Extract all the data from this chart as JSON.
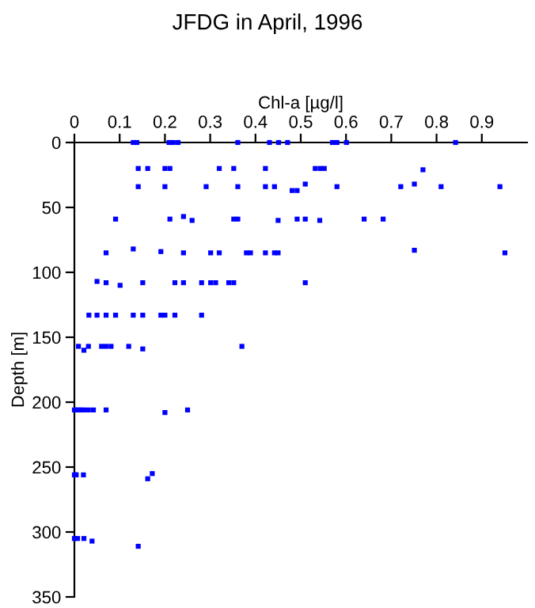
{
  "chart_data": {
    "type": "scatter",
    "title": "JFDG in April, 1996",
    "xlabel": "Chl-a [µg/l]",
    "ylabel": "Depth [m]",
    "marker": "square",
    "grid": false,
    "series": [
      {
        "color": "#0000ff",
        "x": [
          0.13,
          0.138,
          0.209,
          0.218,
          0.229,
          0.361,
          0.431,
          0.451,
          0.471,
          0.57,
          0.58,
          0.601,
          0.842,
          0.141,
          0.162,
          0.2,
          0.211,
          0.32,
          0.352,
          0.422,
          0.532,
          0.543,
          0.552,
          0.77,
          0.141,
          0.2,
          0.291,
          0.361,
          0.422,
          0.442,
          0.481,
          0.492,
          0.51,
          0.58,
          0.721,
          0.751,
          0.81,
          0.94,
          0.091,
          0.211,
          0.241,
          0.26,
          0.352,
          0.361,
          0.45,
          0.492,
          0.51,
          0.542,
          0.64,
          0.682,
          0.07,
          0.13,
          0.191,
          0.241,
          0.301,
          0.32,
          0.38,
          0.389,
          0.422,
          0.442,
          0.45,
          0.751,
          0.951,
          0.05,
          0.07,
          0.101,
          0.151,
          0.222,
          0.241,
          0.281,
          0.301,
          0.312,
          0.341,
          0.352,
          0.51,
          0.032,
          0.05,
          0.07,
          0.091,
          0.13,
          0.151,
          0.191,
          0.2,
          0.222,
          0.281,
          0.009,
          0.021,
          0.031,
          0.06,
          0.07,
          0.081,
          0.12,
          0.151,
          0.37,
          0.0,
          0.004,
          0.009,
          0.015,
          0.021,
          0.031,
          0.042,
          0.07,
          0.2,
          0.25,
          0.0,
          0.002,
          0.004,
          0.02,
          0.162,
          0.172,
          0.0,
          0.007,
          0.021,
          0.039,
          0.141
        ],
        "values": [
          0,
          0,
          0,
          0,
          0,
          0,
          0,
          0,
          0,
          0,
          0,
          0,
          0,
          20,
          20,
          20,
          20,
          20,
          20,
          20,
          20,
          20,
          20,
          21,
          34,
          34,
          34,
          34,
          34,
          34,
          37,
          37,
          32,
          34,
          34,
          32,
          34,
          34,
          59,
          59,
          57,
          60,
          59,
          59,
          60,
          59,
          59,
          60,
          59,
          59,
          85,
          82,
          84,
          85,
          85,
          85,
          85,
          85,
          85,
          85,
          85,
          83,
          85,
          107,
          108,
          110,
          108,
          108,
          108,
          108,
          108,
          108,
          108,
          108,
          108,
          133,
          133,
          133,
          133,
          133,
          133,
          133,
          133,
          133,
          133,
          157,
          160,
          157,
          157,
          157,
          157,
          157,
          159,
          157,
          206,
          206,
          206,
          206,
          206,
          206,
          206,
          206,
          208,
          206,
          256,
          256,
          256,
          256,
          259,
          255,
          305,
          305,
          305,
          307,
          311
        ]
      }
    ],
    "xlim": [
      0,
      1
    ],
    "xticks": [
      0,
      0.1,
      0.2,
      0.3,
      0.4,
      0.5,
      0.6,
      0.7,
      0.8,
      0.9
    ],
    "ylim": [
      350,
      0
    ],
    "yticks": [
      0,
      50,
      100,
      150,
      200,
      250,
      300,
      350
    ]
  }
}
